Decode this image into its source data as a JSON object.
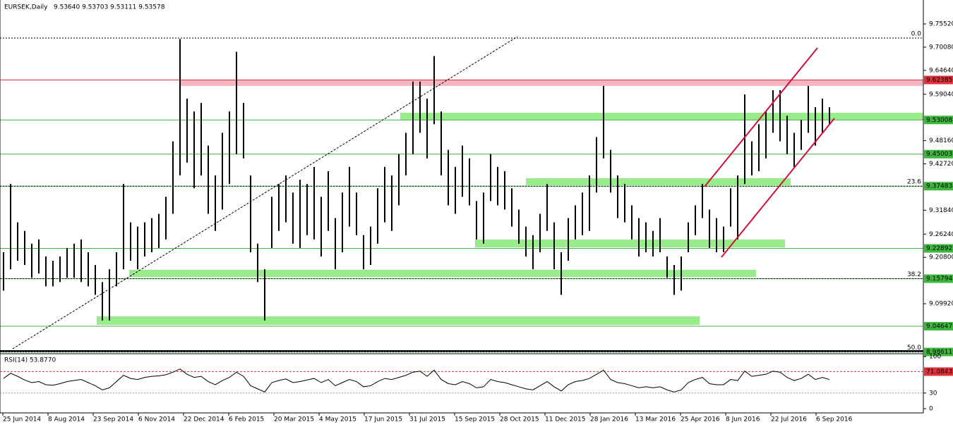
{
  "chart_data": {
    "type": "ohlc",
    "title": "EURSEK,Daily",
    "quote": "9.53640 9.53703 9.53111 9.53578",
    "ylim": [
      8.98611,
      9.8114
    ],
    "yticks": [
      {
        "value": 9.7552,
        "label": "9.75520"
      },
      {
        "value": 9.7008,
        "label": "9.70080"
      },
      {
        "value": 9.6464,
        "label": "9.64640"
      },
      {
        "value": 9.5904,
        "label": "9.59040"
      },
      {
        "value": 9.4816,
        "label": "9.48160"
      },
      {
        "value": 9.4272,
        "label": "9.42720"
      },
      {
        "value": 9.3184,
        "label": "9.31840"
      },
      {
        "value": 9.2624,
        "label": "9.26240"
      },
      {
        "value": 9.208,
        "label": "9.20800"
      },
      {
        "value": 9.0992,
        "label": "9.09920"
      }
    ],
    "levels": [
      {
        "value": 9.62385,
        "label": "9.62385",
        "color": "#e0303a"
      },
      {
        "value": 9.53008,
        "label": "9.53008",
        "color": "#3cb83c"
      },
      {
        "value": 9.45003,
        "label": "9.45003",
        "color": "#3cb83c"
      },
      {
        "value": 9.37483,
        "label": "9.37483",
        "color": "#3cb83c"
      },
      {
        "value": 9.22892,
        "label": "9.22892",
        "color": "#3cb83c"
      },
      {
        "value": 9.15794,
        "label": "9.15794",
        "color": "#3cb83c"
      },
      {
        "value": 9.04647,
        "label": "9.04647",
        "color": "#3cb83c"
      },
      {
        "value": 8.98611,
        "label": "8.98611",
        "color": "#3cb83c"
      }
    ],
    "fib_levels": [
      {
        "label": "0.0",
        "price": 9.7222
      },
      {
        "label": "23.6",
        "price": 9.37483
      },
      {
        "label": "38.2",
        "price": 9.15794
      },
      {
        "label": "50.0",
        "price": 8.98611
      }
    ],
    "color": "#000000",
    "low": [
      9.13,
      9.18,
      9.2,
      9.19,
      9.16,
      9.17,
      9.14,
      9.14,
      9.15,
      9.16,
      9.16,
      9.15,
      9.14,
      9.12,
      9.06,
      9.06,
      9.14,
      9.18,
      9.2,
      9.18,
      9.21,
      9.22,
      9.23,
      9.25,
      9.31,
      9.4,
      9.43,
      9.37,
      9.4,
      9.31,
      9.27,
      9.32,
      9.38,
      9.45,
      9.44,
      9.22,
      9.15,
      9.06,
      9.23,
      9.27,
      9.29,
      9.24,
      9.23,
      9.26,
      9.25,
      9.21,
      9.27,
      9.18,
      9.22,
      9.28,
      9.26,
      9.18,
      9.19,
      9.24,
      9.29,
      9.27,
      9.33,
      9.4,
      9.45,
      9.5,
      9.44,
      9.52,
      9.4,
      9.33,
      9.31,
      9.35,
      9.33,
      9.25,
      9.24,
      9.34,
      9.33,
      9.32,
      9.28,
      9.24,
      9.21,
      9.18,
      9.22,
      9.27,
      9.18,
      9.12,
      9.2,
      9.25,
      9.26,
      9.27,
      9.36,
      9.44,
      9.36,
      9.3,
      9.29,
      9.25,
      9.21,
      9.22,
      9.21,
      9.22,
      9.16,
      9.12,
      9.13,
      9.22,
      9.26,
      9.3,
      9.23,
      9.22,
      9.22,
      9.28,
      9.25,
      9.38,
      9.4,
      9.41,
      9.44,
      9.5,
      9.48,
      9.45,
      9.42,
      9.46,
      9.5,
      9.47,
      9.5,
      9.52
    ],
    "high": [
      9.22,
      9.38,
      9.29,
      9.27,
      9.24,
      9.25,
      9.21,
      9.2,
      9.21,
      9.23,
      9.24,
      9.25,
      9.22,
      9.19,
      9.15,
      9.18,
      9.22,
      9.38,
      9.29,
      9.28,
      9.29,
      9.3,
      9.31,
      9.35,
      9.48,
      9.72,
      9.58,
      9.55,
      9.57,
      9.47,
      9.4,
      9.5,
      9.55,
      9.69,
      9.57,
      9.4,
      9.24,
      9.18,
      9.35,
      9.38,
      9.4,
      9.36,
      9.39,
      9.38,
      9.42,
      9.35,
      9.41,
      9.3,
      9.36,
      9.42,
      9.36,
      9.26,
      9.28,
      9.37,
      9.42,
      9.4,
      9.45,
      9.5,
      9.62,
      9.62,
      9.58,
      9.68,
      9.55,
      9.46,
      9.42,
      9.47,
      9.44,
      9.34,
      9.36,
      9.45,
      9.42,
      9.41,
      9.37,
      9.32,
      9.28,
      9.26,
      9.31,
      9.38,
      9.29,
      9.22,
      9.3,
      9.33,
      9.36,
      9.4,
      9.49,
      9.61,
      9.46,
      9.4,
      9.38,
      9.33,
      9.3,
      9.29,
      9.27,
      9.3,
      9.21,
      9.19,
      9.21,
      9.29,
      9.33,
      9.38,
      9.32,
      9.3,
      9.28,
      9.37,
      9.4,
      9.59,
      9.48,
      9.52,
      9.55,
      9.6,
      9.6,
      9.54,
      9.5,
      9.53,
      9.61,
      9.56,
      9.58,
      9.56
    ],
    "time_labels": [
      "25 Jun 2014",
      "8 Aug 2014",
      "23 Sep 2014",
      "6 Nov 2014",
      "22 Dec 2014",
      "6 Feb 2015",
      "20 Mar 2015",
      "4 May 2015",
      "17 Jun 2015",
      "31 Jul 2015",
      "15 Sep 2015",
      "28 Oct 2015",
      "11 Dec 2015",
      "28 Jan 2016",
      "13 Mar 2016",
      "25 Apr 2016",
      "8 Jun 2016",
      "22 Jul 2016",
      "6 Sep 2016"
    ],
    "rsi": {
      "title": "RSI(14) 53.8770",
      "ylim": [
        0,
        100
      ],
      "yticks": [
        100,
        30,
        0
      ],
      "levels": [
        {
          "value": 71.0843,
          "color": "#e0303a"
        }
      ],
      "values": [
        58,
        68,
        62,
        55,
        50,
        52,
        46,
        45,
        48,
        52,
        54,
        56,
        50,
        44,
        36,
        40,
        52,
        64,
        58,
        56,
        60,
        62,
        63,
        65,
        70,
        76,
        66,
        60,
        62,
        52,
        46,
        54,
        60,
        70,
        62,
        44,
        38,
        32,
        50,
        54,
        57,
        50,
        52,
        55,
        58,
        50,
        56,
        44,
        50,
        56,
        52,
        42,
        44,
        52,
        58,
        56,
        60,
        64,
        70,
        72,
        62,
        74,
        56,
        48,
        46,
        52,
        48,
        40,
        42,
        56,
        52,
        50,
        46,
        42,
        38,
        36,
        44,
        52,
        42,
        34,
        46,
        52,
        54,
        58,
        66,
        74,
        56,
        50,
        48,
        44,
        40,
        42,
        40,
        42,
        36,
        32,
        36,
        50,
        56,
        60,
        48,
        46,
        46,
        56,
        54,
        72,
        62,
        64,
        66,
        72,
        70,
        60,
        54,
        58,
        66,
        56,
        60,
        56
      ]
    }
  }
}
